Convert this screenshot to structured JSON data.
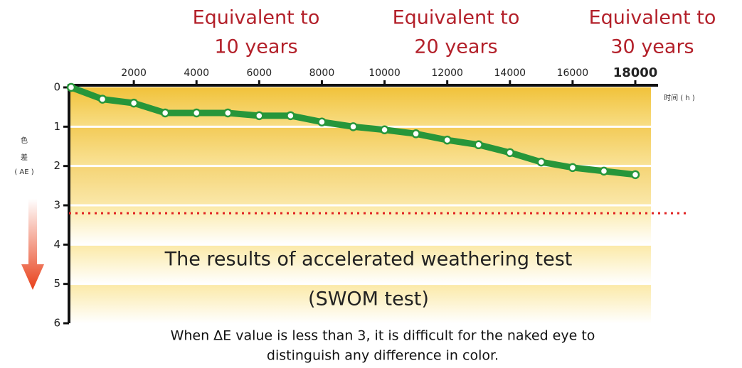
{
  "chart_data": {
    "type": "line",
    "annotations": [
      [
        "Equivalent to",
        "10 years"
      ],
      [
        "Equivalent to",
        "20 years"
      ],
      [
        "Equivalent to",
        "30 years"
      ]
    ],
    "title": "The results of accelerated weathering test",
    "subtitle": "(SWOM test)",
    "note": [
      "When ΔE value is less than 3, it is difficult for the naked eye to",
      "distinguish any difference in color."
    ],
    "x_label": "时间 ( h )",
    "y_label": [
      "色",
      "差",
      "( AE )"
    ],
    "x": [
      0,
      1000,
      2000,
      3000,
      4000,
      5000,
      6000,
      7000,
      8000,
      9000,
      10000,
      11000,
      12000,
      13000,
      14000,
      15000,
      16000,
      17000,
      18000
    ],
    "series": [
      {
        "color": "#27963a",
        "values": [
          0,
          0.3,
          0.4,
          0.65,
          0.65,
          0.65,
          0.72,
          0.72,
          0.88,
          1.0,
          1.08,
          1.18,
          1.34,
          1.46,
          1.66,
          1.9,
          2.04,
          2.13,
          2.22
        ]
      }
    ],
    "threshold": 3.2,
    "threshold_color": "#e02020",
    "xlim": [
      0,
      18000
    ],
    "xticks": [
      2000,
      4000,
      6000,
      8000,
      10000,
      12000,
      14000,
      16000,
      18000
    ],
    "ylim": [
      0,
      6
    ],
    "yticks": [
      0,
      1,
      2,
      3,
      4,
      5,
      6
    ],
    "y_inverted": true,
    "grid": true
  }
}
